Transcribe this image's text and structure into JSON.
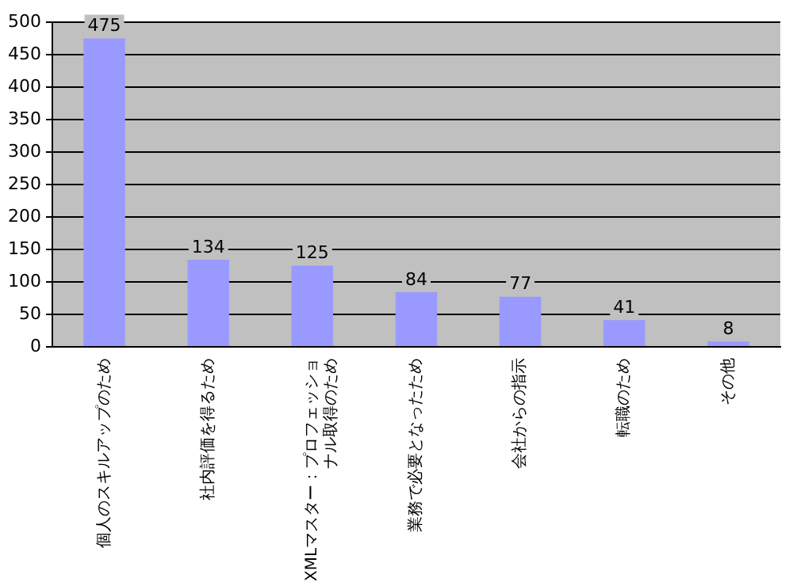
{
  "chart_data": {
    "type": "bar",
    "categories": [
      "個人のスキルアップのため",
      "社内評価を得るため",
      "XMLマスター：プロフェッショナル取得のため",
      "業務で必要となったため",
      "会社からの指示",
      "転職のため",
      "その他"
    ],
    "values": [
      475,
      134,
      125,
      84,
      77,
      41,
      8
    ],
    "color": "#9999ff",
    "ylim": [
      0,
      500
    ],
    "yticks": [
      0,
      50,
      100,
      150,
      200,
      250,
      300,
      350,
      400,
      450,
      500
    ],
    "grid": "y",
    "legend": false,
    "data_labels": true
  }
}
